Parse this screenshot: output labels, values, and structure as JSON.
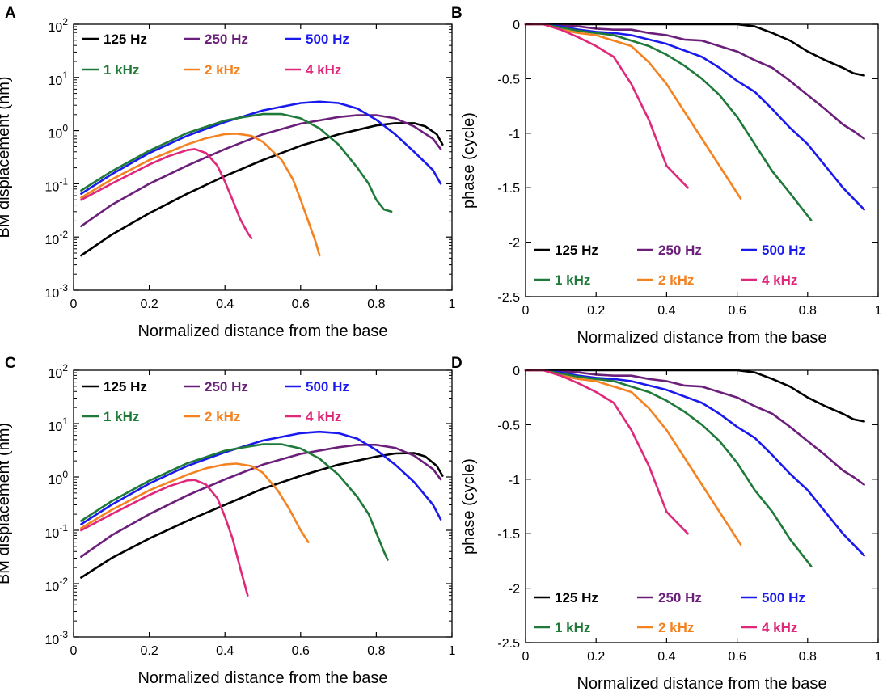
{
  "figure": {
    "x_axis_label": "Normalized distance from the base",
    "y_axis_label_amp": "BM displacement (nm)",
    "y_axis_label_phase": "phase (cycle)",
    "x_tick_labels": [
      "0",
      "0.2",
      "0.4",
      "0.6",
      "0.8",
      "1"
    ],
    "amp_tick_exponents": [
      "-3",
      "-2",
      "-1",
      "0",
      "1",
      "2"
    ],
    "phase_tick_labels": [
      "0",
      "-0.5",
      "-1",
      "-1.5",
      "-2",
      "-2.5"
    ],
    "legend_labels": [
      "125 Hz",
      "250 Hz",
      "500 Hz",
      "1 kHz",
      "2 kHz",
      "4 kHz"
    ],
    "series_colors": [
      "#000000",
      "#6b1f7a",
      "#1a1aee",
      "#1f7a3a",
      "#f58220",
      "#e0287a"
    ]
  },
  "chart_data": [
    {
      "panel": "A",
      "type": "line",
      "scale": "log",
      "xlabel": "Normalized distance from the base",
      "ylabel": "BM displacement (nm)",
      "xlim": [
        0,
        1
      ],
      "ylim": [
        0.001,
        100
      ],
      "legend": "top-left",
      "series": [
        {
          "name": "125 Hz",
          "x": [
            0.02,
            0.1,
            0.2,
            0.3,
            0.4,
            0.5,
            0.6,
            0.7,
            0.8,
            0.85,
            0.9,
            0.93,
            0.96,
            0.975
          ],
          "y": [
            0.0045,
            0.011,
            0.028,
            0.065,
            0.14,
            0.28,
            0.52,
            0.85,
            1.25,
            1.38,
            1.38,
            1.2,
            0.85,
            0.55
          ]
        },
        {
          "name": "250 Hz",
          "x": [
            0.02,
            0.1,
            0.2,
            0.3,
            0.4,
            0.5,
            0.6,
            0.7,
            0.75,
            0.8,
            0.85,
            0.9,
            0.95,
            0.97
          ],
          "y": [
            0.016,
            0.04,
            0.1,
            0.22,
            0.45,
            0.85,
            1.35,
            1.8,
            1.95,
            1.95,
            1.7,
            1.2,
            0.7,
            0.45
          ]
        },
        {
          "name": "500 Hz",
          "x": [
            0.02,
            0.1,
            0.2,
            0.3,
            0.4,
            0.5,
            0.6,
            0.65,
            0.7,
            0.75,
            0.8,
            0.85,
            0.9,
            0.95,
            0.97
          ],
          "y": [
            0.065,
            0.15,
            0.38,
            0.8,
            1.45,
            2.4,
            3.3,
            3.5,
            3.3,
            2.6,
            1.6,
            0.85,
            0.4,
            0.18,
            0.1
          ]
        },
        {
          "name": "1 kHz",
          "x": [
            0.02,
            0.1,
            0.2,
            0.3,
            0.4,
            0.45,
            0.5,
            0.55,
            0.6,
            0.65,
            0.7,
            0.75,
            0.78,
            0.8,
            0.82,
            0.84
          ],
          "y": [
            0.075,
            0.17,
            0.42,
            0.9,
            1.55,
            1.8,
            2.05,
            2.05,
            1.7,
            1.1,
            0.55,
            0.2,
            0.1,
            0.05,
            0.033,
            0.03
          ]
        },
        {
          "name": "2 kHz",
          "x": [
            0.02,
            0.1,
            0.2,
            0.3,
            0.35,
            0.4,
            0.43,
            0.47,
            0.5,
            0.55,
            0.58,
            0.6,
            0.62,
            0.64,
            0.65
          ],
          "y": [
            0.055,
            0.12,
            0.28,
            0.55,
            0.72,
            0.86,
            0.88,
            0.8,
            0.62,
            0.28,
            0.12,
            0.05,
            0.02,
            0.008,
            0.0045
          ]
        },
        {
          "name": "4 kHz",
          "x": [
            0.02,
            0.1,
            0.2,
            0.25,
            0.3,
            0.32,
            0.35,
            0.38,
            0.4,
            0.42,
            0.44,
            0.46,
            0.47
          ],
          "y": [
            0.05,
            0.1,
            0.23,
            0.33,
            0.43,
            0.45,
            0.38,
            0.22,
            0.11,
            0.05,
            0.022,
            0.012,
            0.0095
          ]
        }
      ]
    },
    {
      "panel": "B",
      "type": "line",
      "xlabel": "Normalized distance from the base",
      "ylabel": "phase (cycle)",
      "xlim": [
        0,
        1
      ],
      "ylim": [
        -2.5,
        0
      ],
      "legend": "bottom-left",
      "series": [
        {
          "name": "125 Hz",
          "x": [
            0,
            0.1,
            0.2,
            0.3,
            0.4,
            0.5,
            0.6,
            0.65,
            0.7,
            0.75,
            0.8,
            0.85,
            0.9,
            0.93,
            0.96
          ],
          "y": [
            0,
            0,
            0,
            0,
            0,
            0,
            0,
            -0.02,
            -0.08,
            -0.15,
            -0.25,
            -0.33,
            -0.4,
            -0.45,
            -0.47
          ]
        },
        {
          "name": "250 Hz",
          "x": [
            0,
            0.05,
            0.1,
            0.15,
            0.2,
            0.25,
            0.3,
            0.35,
            0.4,
            0.45,
            0.5,
            0.55,
            0.6,
            0.65,
            0.7,
            0.75,
            0.8,
            0.85,
            0.9,
            0.93,
            0.96
          ],
          "y": [
            0,
            0,
            -0.01,
            -0.02,
            -0.04,
            -0.05,
            -0.05,
            -0.08,
            -0.1,
            -0.14,
            -0.15,
            -0.2,
            -0.25,
            -0.33,
            -0.4,
            -0.52,
            -0.65,
            -0.78,
            -0.92,
            -0.98,
            -1.05
          ]
        },
        {
          "name": "500 Hz",
          "x": [
            0,
            0.05,
            0.1,
            0.15,
            0.2,
            0.25,
            0.3,
            0.35,
            0.4,
            0.45,
            0.5,
            0.55,
            0.6,
            0.65,
            0.7,
            0.75,
            0.8,
            0.85,
            0.9,
            0.96
          ],
          "y": [
            0,
            0,
            -0.02,
            -0.05,
            -0.07,
            -0.08,
            -0.1,
            -0.14,
            -0.18,
            -0.24,
            -0.3,
            -0.4,
            -0.52,
            -0.62,
            -0.78,
            -0.95,
            -1.1,
            -1.3,
            -1.5,
            -1.7
          ]
        },
        {
          "name": "1 kHz",
          "x": [
            0,
            0.05,
            0.1,
            0.15,
            0.2,
            0.25,
            0.3,
            0.35,
            0.4,
            0.45,
            0.5,
            0.55,
            0.6,
            0.65,
            0.7,
            0.75,
            0.81
          ],
          "y": [
            0,
            0,
            -0.03,
            -0.06,
            -0.08,
            -0.1,
            -0.15,
            -0.2,
            -0.28,
            -0.38,
            -0.5,
            -0.65,
            -0.85,
            -1.1,
            -1.35,
            -1.55,
            -1.8
          ]
        },
        {
          "name": "2 kHz",
          "x": [
            0,
            0.05,
            0.1,
            0.15,
            0.2,
            0.25,
            0.3,
            0.35,
            0.4,
            0.45,
            0.5,
            0.55,
            0.61
          ],
          "y": [
            0,
            0,
            -0.05,
            -0.08,
            -0.1,
            -0.15,
            -0.2,
            -0.35,
            -0.55,
            -0.8,
            -1.05,
            -1.3,
            -1.6
          ]
        },
        {
          "name": "4 kHz",
          "x": [
            0,
            0.05,
            0.1,
            0.15,
            0.2,
            0.25,
            0.3,
            0.35,
            0.4,
            0.46
          ],
          "y": [
            0,
            0,
            -0.05,
            -0.12,
            -0.2,
            -0.3,
            -0.55,
            -0.88,
            -1.3,
            -1.5
          ]
        }
      ]
    },
    {
      "panel": "C",
      "type": "line",
      "scale": "log",
      "xlabel": "Normalized distance from the base",
      "ylabel": "BM displacement (nm)",
      "xlim": [
        0,
        1
      ],
      "ylim": [
        0.001,
        100
      ],
      "legend": "top-left",
      "series": [
        {
          "name": "125 Hz",
          "x": [
            0.02,
            0.1,
            0.2,
            0.3,
            0.4,
            0.5,
            0.6,
            0.7,
            0.8,
            0.85,
            0.9,
            0.93,
            0.96,
            0.975
          ],
          "y": [
            0.013,
            0.03,
            0.07,
            0.15,
            0.3,
            0.6,
            1.05,
            1.7,
            2.4,
            2.75,
            2.8,
            2.4,
            1.6,
            1.05
          ]
        },
        {
          "name": "250 Hz",
          "x": [
            0.02,
            0.1,
            0.2,
            0.3,
            0.4,
            0.5,
            0.6,
            0.7,
            0.75,
            0.8,
            0.85,
            0.9,
            0.95,
            0.97
          ],
          "y": [
            0.032,
            0.08,
            0.2,
            0.45,
            0.9,
            1.7,
            2.7,
            3.6,
            4.0,
            4.0,
            3.5,
            2.5,
            1.4,
            0.9
          ]
        },
        {
          "name": "500 Hz",
          "x": [
            0.02,
            0.1,
            0.2,
            0.3,
            0.4,
            0.5,
            0.6,
            0.65,
            0.7,
            0.75,
            0.8,
            0.85,
            0.9,
            0.95,
            0.97
          ],
          "y": [
            0.13,
            0.3,
            0.75,
            1.6,
            2.9,
            4.8,
            6.6,
            7.0,
            6.6,
            5.2,
            3.2,
            1.7,
            0.8,
            0.3,
            0.16
          ]
        },
        {
          "name": "1 kHz",
          "x": [
            0.02,
            0.1,
            0.2,
            0.3,
            0.4,
            0.45,
            0.5,
            0.55,
            0.6,
            0.65,
            0.7,
            0.75,
            0.78,
            0.8,
            0.82,
            0.83
          ],
          "y": [
            0.15,
            0.35,
            0.85,
            1.8,
            3.1,
            3.6,
            4.1,
            4.1,
            3.4,
            2.2,
            1.1,
            0.42,
            0.2,
            0.09,
            0.04,
            0.028
          ]
        },
        {
          "name": "2 kHz",
          "x": [
            0.02,
            0.1,
            0.2,
            0.3,
            0.35,
            0.4,
            0.43,
            0.47,
            0.5,
            0.54,
            0.57,
            0.6,
            0.62
          ],
          "y": [
            0.11,
            0.24,
            0.56,
            1.1,
            1.45,
            1.72,
            1.78,
            1.6,
            1.2,
            0.55,
            0.25,
            0.1,
            0.06
          ]
        },
        {
          "name": "4 kHz",
          "x": [
            0.02,
            0.1,
            0.2,
            0.25,
            0.3,
            0.32,
            0.35,
            0.38,
            0.4,
            0.42,
            0.44,
            0.46
          ],
          "y": [
            0.1,
            0.2,
            0.46,
            0.66,
            0.86,
            0.88,
            0.72,
            0.4,
            0.18,
            0.07,
            0.02,
            0.006
          ]
        }
      ]
    },
    {
      "panel": "D",
      "type": "line",
      "xlabel": "Normalized distance from the base",
      "ylabel": "phase (cycle)",
      "xlim": [
        0,
        1
      ],
      "ylim": [
        -2.5,
        0
      ],
      "legend": "bottom-left",
      "series": [
        {
          "name": "125 Hz",
          "x": [
            0,
            0.1,
            0.2,
            0.3,
            0.4,
            0.5,
            0.6,
            0.65,
            0.7,
            0.75,
            0.8,
            0.85,
            0.9,
            0.93,
            0.96
          ],
          "y": [
            0,
            0,
            0,
            0,
            0,
            0,
            0,
            -0.02,
            -0.08,
            -0.15,
            -0.25,
            -0.33,
            -0.4,
            -0.45,
            -0.47
          ]
        },
        {
          "name": "250 Hz",
          "x": [
            0,
            0.05,
            0.1,
            0.15,
            0.2,
            0.25,
            0.3,
            0.35,
            0.4,
            0.45,
            0.5,
            0.55,
            0.6,
            0.65,
            0.7,
            0.75,
            0.8,
            0.85,
            0.9,
            0.93,
            0.96
          ],
          "y": [
            0,
            0,
            -0.01,
            -0.02,
            -0.04,
            -0.05,
            -0.05,
            -0.08,
            -0.1,
            -0.14,
            -0.15,
            -0.2,
            -0.25,
            -0.33,
            -0.4,
            -0.52,
            -0.65,
            -0.78,
            -0.92,
            -0.98,
            -1.05
          ]
        },
        {
          "name": "500 Hz",
          "x": [
            0,
            0.05,
            0.1,
            0.15,
            0.2,
            0.25,
            0.3,
            0.35,
            0.4,
            0.45,
            0.5,
            0.55,
            0.6,
            0.65,
            0.7,
            0.75,
            0.8,
            0.85,
            0.9,
            0.96
          ],
          "y": [
            0,
            0,
            -0.02,
            -0.05,
            -0.07,
            -0.08,
            -0.1,
            -0.14,
            -0.18,
            -0.24,
            -0.3,
            -0.4,
            -0.52,
            -0.62,
            -0.78,
            -0.95,
            -1.1,
            -1.3,
            -1.5,
            -1.7
          ]
        },
        {
          "name": "1 kHz",
          "x": [
            0,
            0.05,
            0.1,
            0.15,
            0.2,
            0.25,
            0.3,
            0.35,
            0.4,
            0.45,
            0.5,
            0.55,
            0.6,
            0.65,
            0.7,
            0.75,
            0.81
          ],
          "y": [
            0,
            0,
            -0.03,
            -0.06,
            -0.08,
            -0.1,
            -0.15,
            -0.2,
            -0.28,
            -0.38,
            -0.5,
            -0.65,
            -0.85,
            -1.1,
            -1.3,
            -1.55,
            -1.8
          ]
        },
        {
          "name": "2 kHz",
          "x": [
            0,
            0.05,
            0.1,
            0.15,
            0.2,
            0.25,
            0.3,
            0.35,
            0.4,
            0.45,
            0.5,
            0.55,
            0.61
          ],
          "y": [
            0,
            0,
            -0.05,
            -0.08,
            -0.1,
            -0.15,
            -0.2,
            -0.35,
            -0.55,
            -0.8,
            -1.05,
            -1.3,
            -1.6
          ]
        },
        {
          "name": "4 kHz",
          "x": [
            0,
            0.05,
            0.1,
            0.15,
            0.2,
            0.25,
            0.3,
            0.35,
            0.4,
            0.46
          ],
          "y": [
            0,
            0,
            -0.05,
            -0.12,
            -0.2,
            -0.3,
            -0.55,
            -0.88,
            -1.3,
            -1.5
          ]
        }
      ]
    }
  ]
}
